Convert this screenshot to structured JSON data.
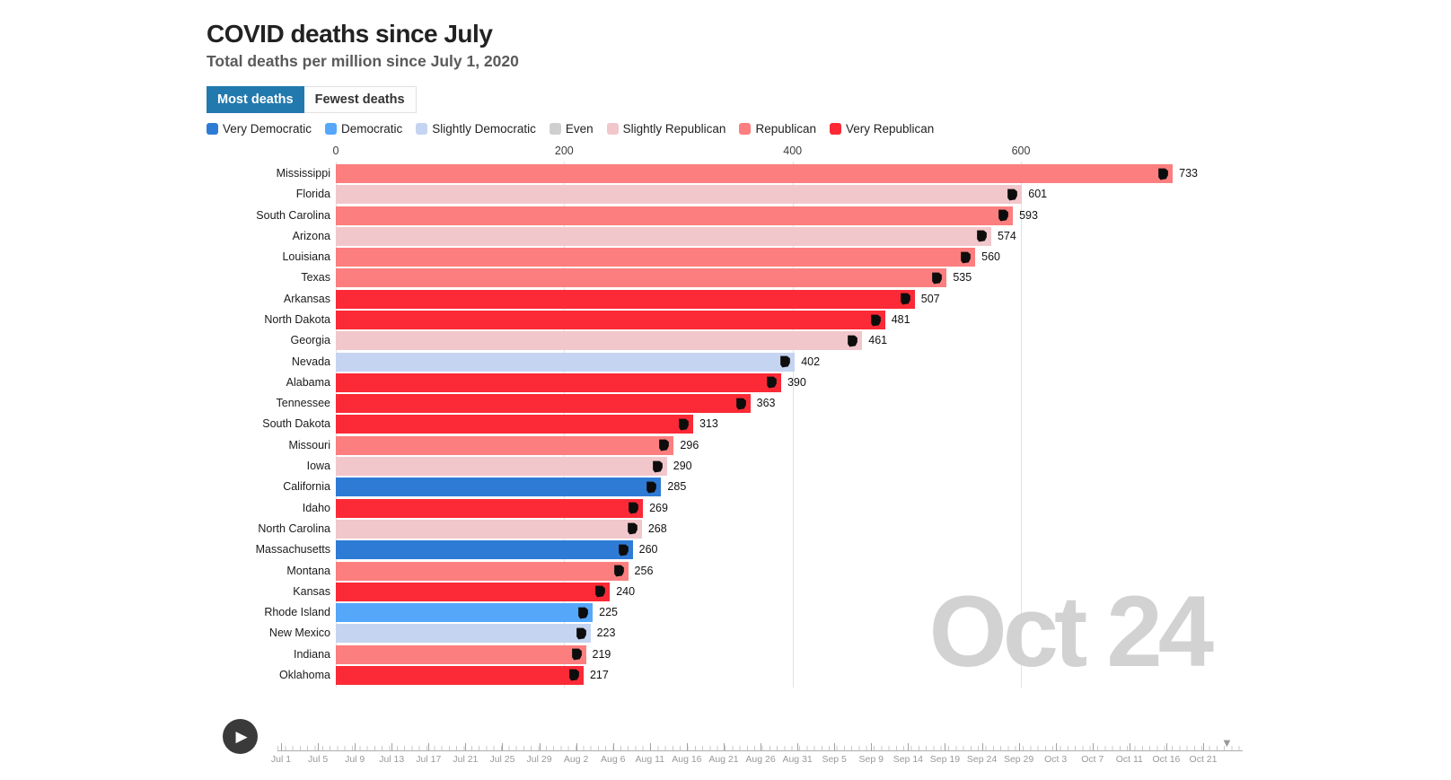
{
  "header": {
    "title": "COVID deaths since July",
    "subtitle": "Total deaths per million since July 1, 2020"
  },
  "tabs": [
    {
      "label": "Most deaths",
      "active": true
    },
    {
      "label": "Fewest deaths",
      "active": false
    }
  ],
  "legend": [
    {
      "label": "Very Democratic",
      "color": "#2e7bd6"
    },
    {
      "label": "Democratic",
      "color": "#55a7fa"
    },
    {
      "label": "Slightly Democratic",
      "color": "#c5d4f0"
    },
    {
      "label": "Even",
      "color": "#cfcfcf"
    },
    {
      "label": "Slightly Republican",
      "color": "#f2c7cc"
    },
    {
      "label": "Republican",
      "color": "#fc7e7e"
    },
    {
      "label": "Very Republican",
      "color": "#fb2a36"
    }
  ],
  "chart_data": {
    "type": "bar",
    "orientation": "horizontal",
    "title": "COVID deaths since July",
    "subtitle": "Total deaths per million since July 1, 2020",
    "xlabel": "",
    "ylabel": "",
    "x_ticks": [
      0,
      200,
      400,
      600
    ],
    "xlim": [
      0,
      760
    ],
    "grid": true,
    "legend_position": "top",
    "date_label": "Oct 24",
    "categories": [
      "Mississippi",
      "Florida",
      "South Carolina",
      "Arizona",
      "Louisiana",
      "Texas",
      "Arkansas",
      "North Dakota",
      "Georgia",
      "Nevada",
      "Alabama",
      "Tennessee",
      "South Dakota",
      "Missouri",
      "Iowa",
      "California",
      "Idaho",
      "North Carolina",
      "Massachusetts",
      "Montana",
      "Kansas",
      "Rhode Island",
      "New Mexico",
      "Indiana",
      "Oklahoma"
    ],
    "values": [
      733,
      601,
      593,
      574,
      560,
      535,
      507,
      481,
      461,
      402,
      390,
      363,
      313,
      296,
      290,
      285,
      269,
      268,
      260,
      256,
      240,
      225,
      223,
      219,
      217
    ],
    "party": [
      "Republican",
      "Slightly Republican",
      "Republican",
      "Slightly Republican",
      "Republican",
      "Republican",
      "Very Republican",
      "Very Republican",
      "Slightly Republican",
      "Slightly Democratic",
      "Very Republican",
      "Very Republican",
      "Very Republican",
      "Republican",
      "Slightly Republican",
      "Very Democratic",
      "Very Republican",
      "Slightly Republican",
      "Very Democratic",
      "Republican",
      "Very Republican",
      "Democratic",
      "Slightly Democratic",
      "Republican",
      "Very Republican"
    ]
  },
  "controls": {
    "play_icon": "▶"
  },
  "timeline": {
    "dates": [
      "Jul 1",
      "Jul 5",
      "Jul 9",
      "Jul 13",
      "Jul 17",
      "Jul 21",
      "Jul 25",
      "Jul 29",
      "Aug 2",
      "Aug 6",
      "Aug 11",
      "Aug 16",
      "Aug 21",
      "Aug 26",
      "Aug 31",
      "Sep 5",
      "Sep 9",
      "Sep 14",
      "Sep 19",
      "Sep 24",
      "Sep 29",
      "Oct 3",
      "Oct 7",
      "Oct 11",
      "Oct 16",
      "Oct 21"
    ],
    "current_label": "Oct 24",
    "handle_icon": "▼"
  },
  "colors": {
    "tab_active_bg": "#2279ae",
    "watermark": "#d2d2d2",
    "bar_icon": "#0d0d0d",
    "title_text": "#222222",
    "subtitle_text": "#5a5a5a"
  }
}
